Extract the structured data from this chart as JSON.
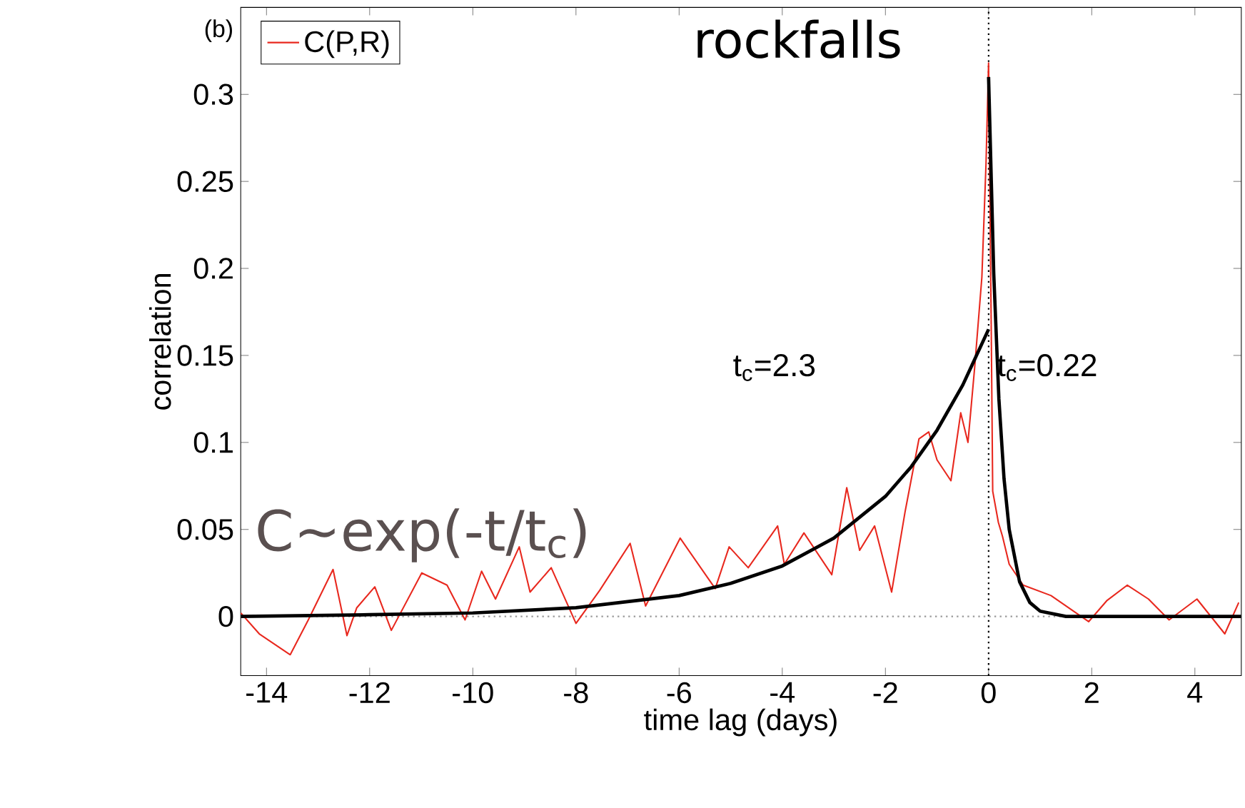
{
  "chart_data": {
    "type": "line",
    "title": "rockfalls",
    "xlabel": "time lag (days)",
    "ylabel": "correlation",
    "xlim": [
      -14.5,
      4.9
    ],
    "ylim": [
      -0.034,
      0.35
    ],
    "xticks": [
      -14,
      -12,
      -10,
      -8,
      -6,
      -4,
      -2,
      0,
      2,
      4
    ],
    "yticks": [
      0,
      0.05,
      0.1,
      0.15,
      0.2,
      0.25,
      0.3
    ],
    "legend": "top left",
    "marker": "none",
    "line_style": "solid",
    "grid": false,
    "series": [
      {
        "name": "C(P,R)",
        "color": "#e8281e",
        "x": [
          -14.5,
          -14.14,
          -13.54,
          -13.19,
          -12.71,
          -12.44,
          -12.25,
          -11.9,
          -11.58,
          -10.99,
          -10.5,
          -10.15,
          -9.83,
          -9.56,
          -9.1,
          -8.89,
          -8.48,
          -8.0,
          -7.54,
          -6.95,
          -6.65,
          -5.98,
          -5.3,
          -5.03,
          -4.66,
          -4.09,
          -3.96,
          -3.58,
          -3.04,
          -2.75,
          -2.5,
          -2.21,
          -1.88,
          -1.62,
          -1.35,
          -1.16,
          -1.0,
          -0.73,
          -0.54,
          -0.4,
          -0.27,
          -0.13,
          -0.05,
          0.0,
          0.05,
          0.08,
          0.19,
          0.27,
          0.4,
          0.67,
          1.21,
          1.94,
          2.29,
          2.69,
          3.1,
          3.5,
          4.04,
          4.58,
          4.85
        ],
        "values": [
          0.002,
          -0.01,
          -0.022,
          -0.002,
          0.027,
          -0.011,
          0.005,
          0.017,
          -0.008,
          0.025,
          0.018,
          -0.002,
          0.026,
          0.01,
          0.04,
          0.014,
          0.028,
          -0.004,
          0.015,
          0.042,
          0.006,
          0.045,
          0.016,
          0.04,
          0.028,
          0.052,
          0.03,
          0.048,
          0.024,
          0.074,
          0.038,
          0.052,
          0.014,
          0.06,
          0.102,
          0.106,
          0.09,
          0.078,
          0.117,
          0.1,
          0.143,
          0.195,
          0.26,
          0.318,
          0.17,
          0.072,
          0.054,
          0.046,
          0.03,
          0.018,
          0.012,
          -0.003,
          0.009,
          0.018,
          0.01,
          -0.002,
          0.01,
          -0.01,
          0.008
        ]
      },
      {
        "color": "#000000",
        "x": [
          -14.5,
          -12,
          -10,
          -8,
          -6,
          -5,
          -4,
          -3,
          -2,
          -1.5,
          -1,
          -0.5,
          0
        ],
        "values": [
          0,
          0.001,
          0.002,
          0.005,
          0.012,
          0.019,
          0.029,
          0.045,
          0.069,
          0.086,
          0.107,
          0.133,
          0.165
        ]
      },
      {
        "color": "#000000",
        "x": [
          0,
          0.1,
          0.2,
          0.3,
          0.4,
          0.6,
          0.8,
          1,
          1.5,
          4.9
        ],
        "values": [
          0.31,
          0.197,
          0.125,
          0.079,
          0.05,
          0.02,
          0.008,
          0.003,
          0,
          0
        ]
      }
    ],
    "ref_lines": [
      {
        "axis": "x",
        "value": 0,
        "color": "#000000",
        "line_style": "dotted"
      },
      {
        "axis": "y",
        "value": 0,
        "color": "#999999",
        "line_style": "dotted"
      }
    ],
    "annotations": [
      "(b)",
      "C~exp(-t/t$_{c}$)",
      "t$_{c}$=2.3",
      "t$_{c}$=0.22"
    ]
  }
}
